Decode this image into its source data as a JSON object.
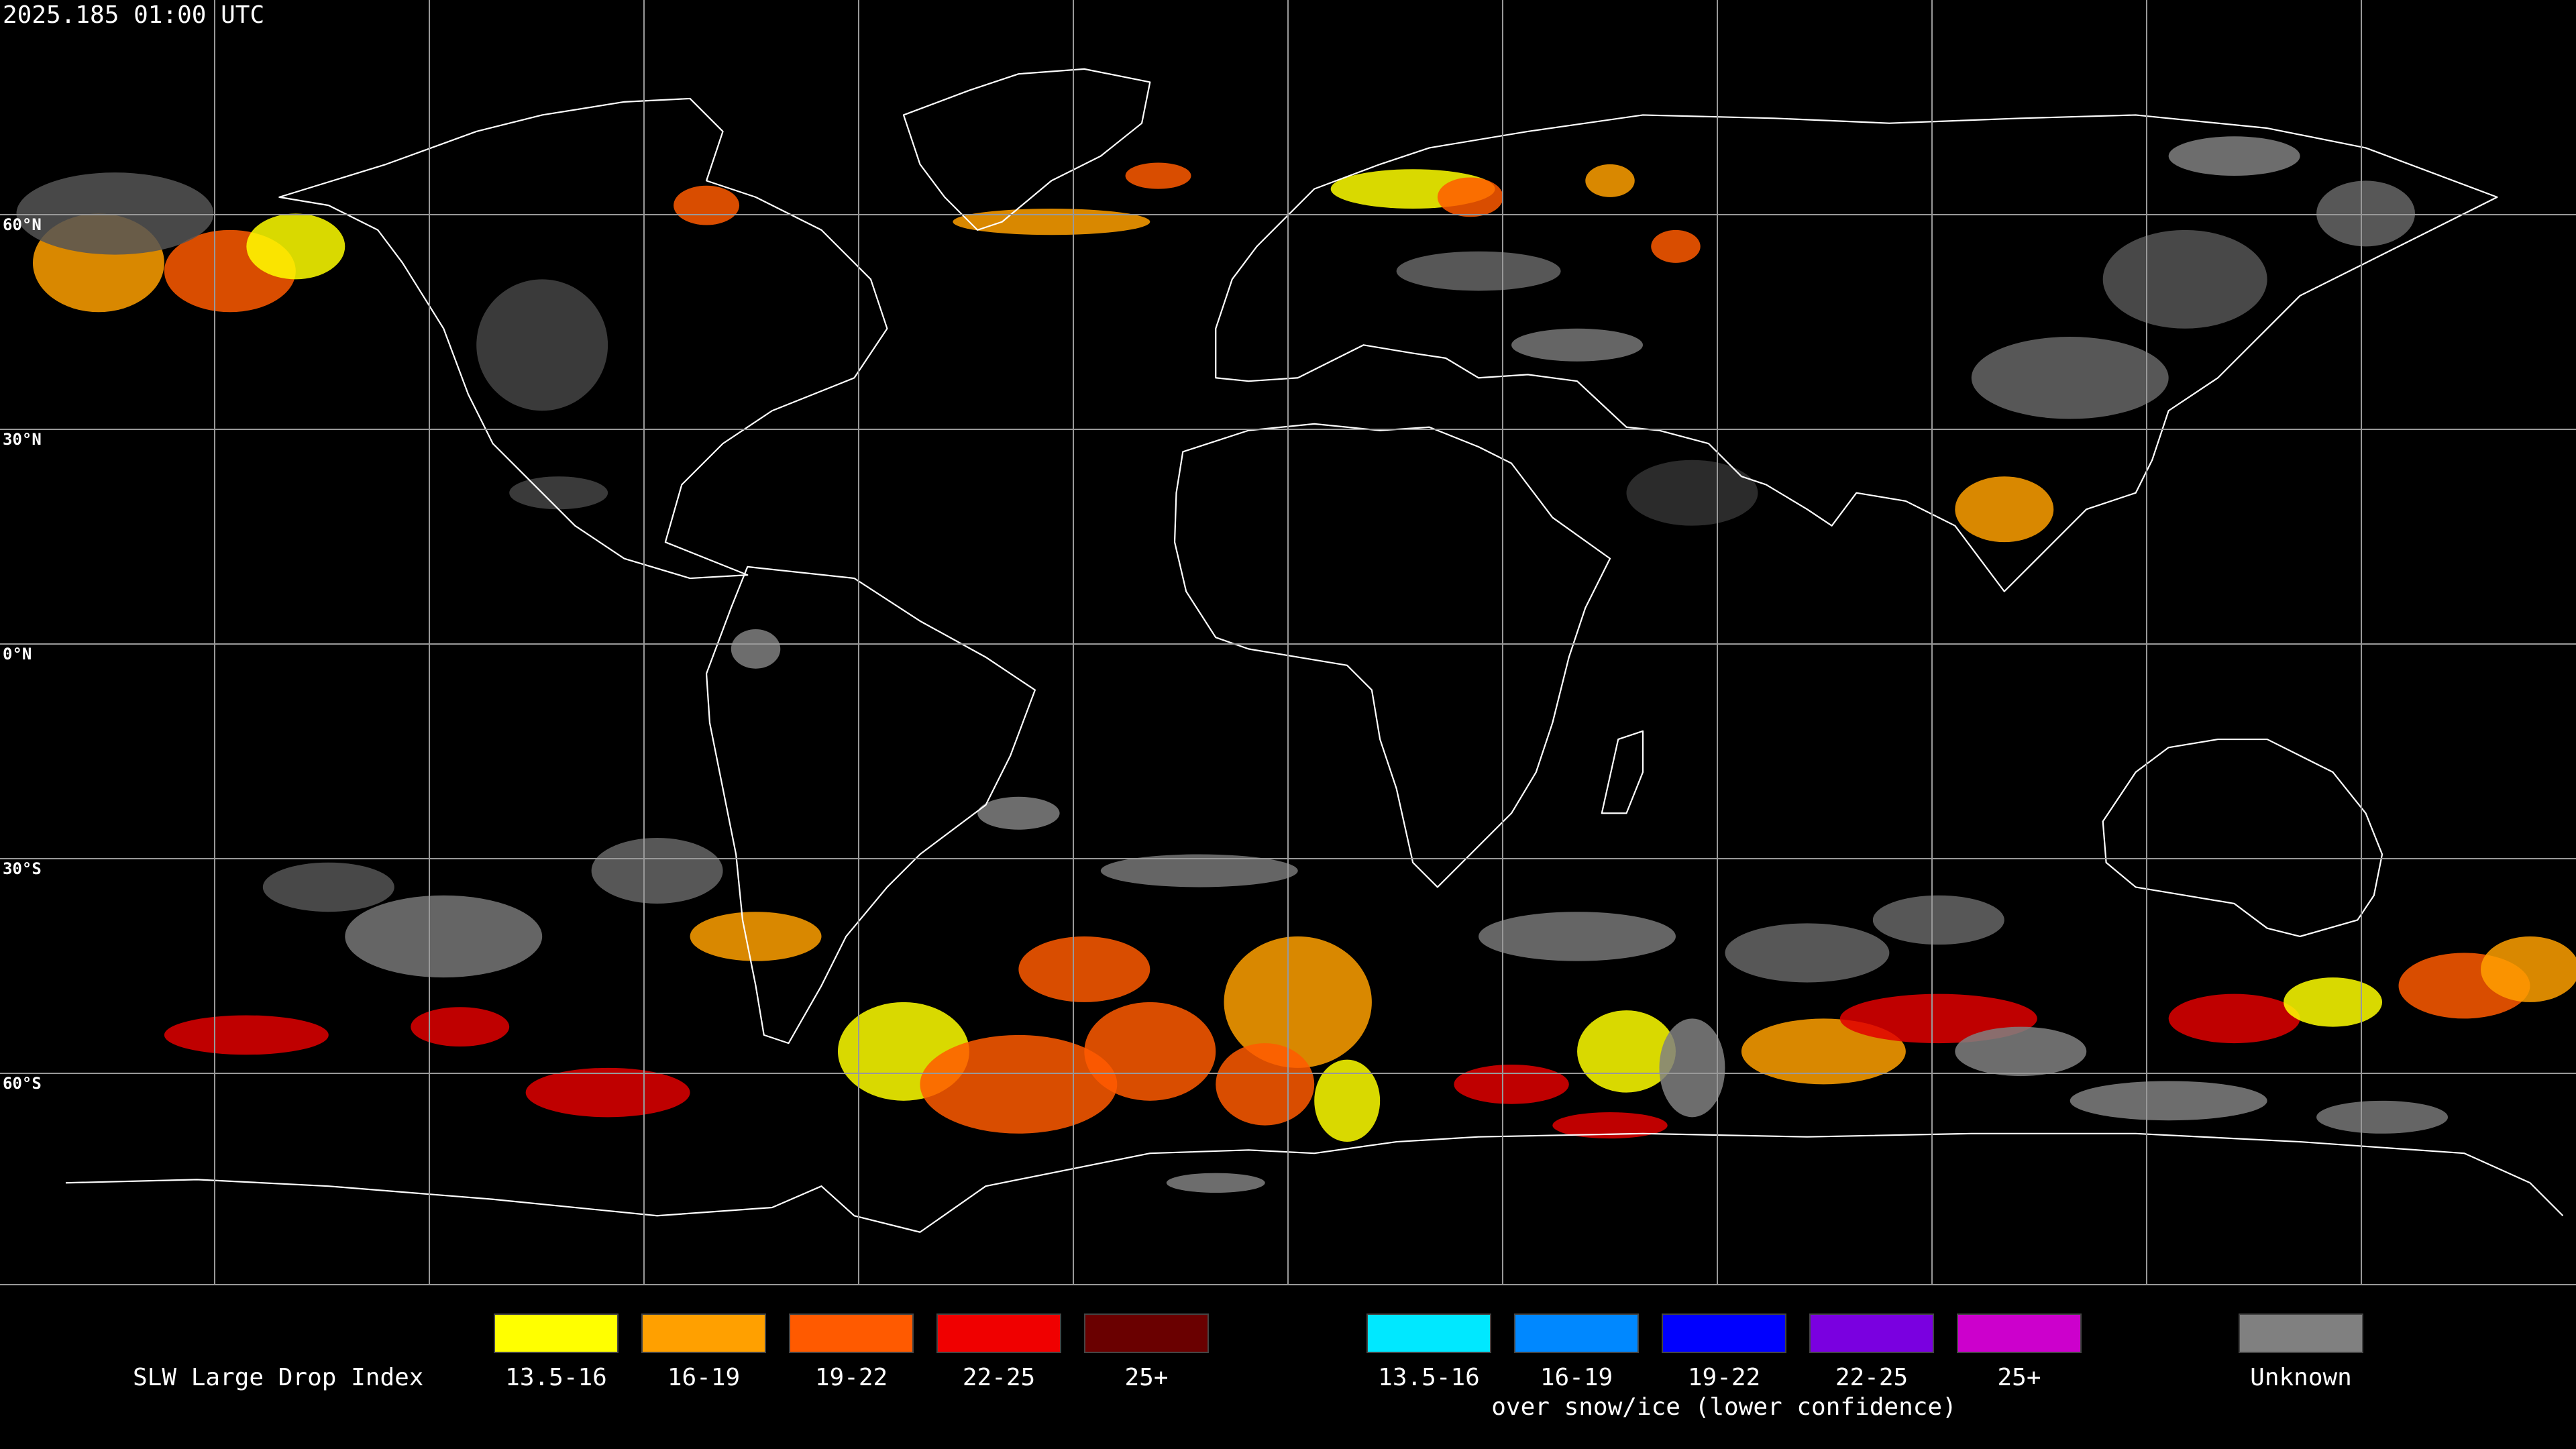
{
  "header": {
    "timestamp": "2025.185 01:00 UTC"
  },
  "map": {
    "latitude_labels": [
      "60°N",
      "30°N",
      "0°N",
      "30°S",
      "60°S"
    ]
  },
  "legend": {
    "title": "SLW Large Drop Index",
    "groups": [
      {
        "items": [
          {
            "label": "13.5-16",
            "color": "#ffff00"
          },
          {
            "label": "16-19",
            "color": "#ffa000"
          },
          {
            "label": "19-22",
            "color": "#ff5a00"
          },
          {
            "label": "22-25",
            "color": "#f00000"
          },
          {
            "label": "25+",
            "color": "#6a0000"
          }
        ]
      },
      {
        "caption": "over snow/ice (lower confidence)",
        "items": [
          {
            "label": "13.5-16",
            "color": "#00e8ff"
          },
          {
            "label": "16-19",
            "color": "#0088ff"
          },
          {
            "label": "19-22",
            "color": "#0000ff"
          },
          {
            "label": "22-25",
            "color": "#7a00e0"
          },
          {
            "label": "25+",
            "color": "#cc00cc"
          }
        ]
      },
      {
        "items": [
          {
            "label": "Unknown",
            "color": "#808080"
          }
        ]
      }
    ]
  }
}
